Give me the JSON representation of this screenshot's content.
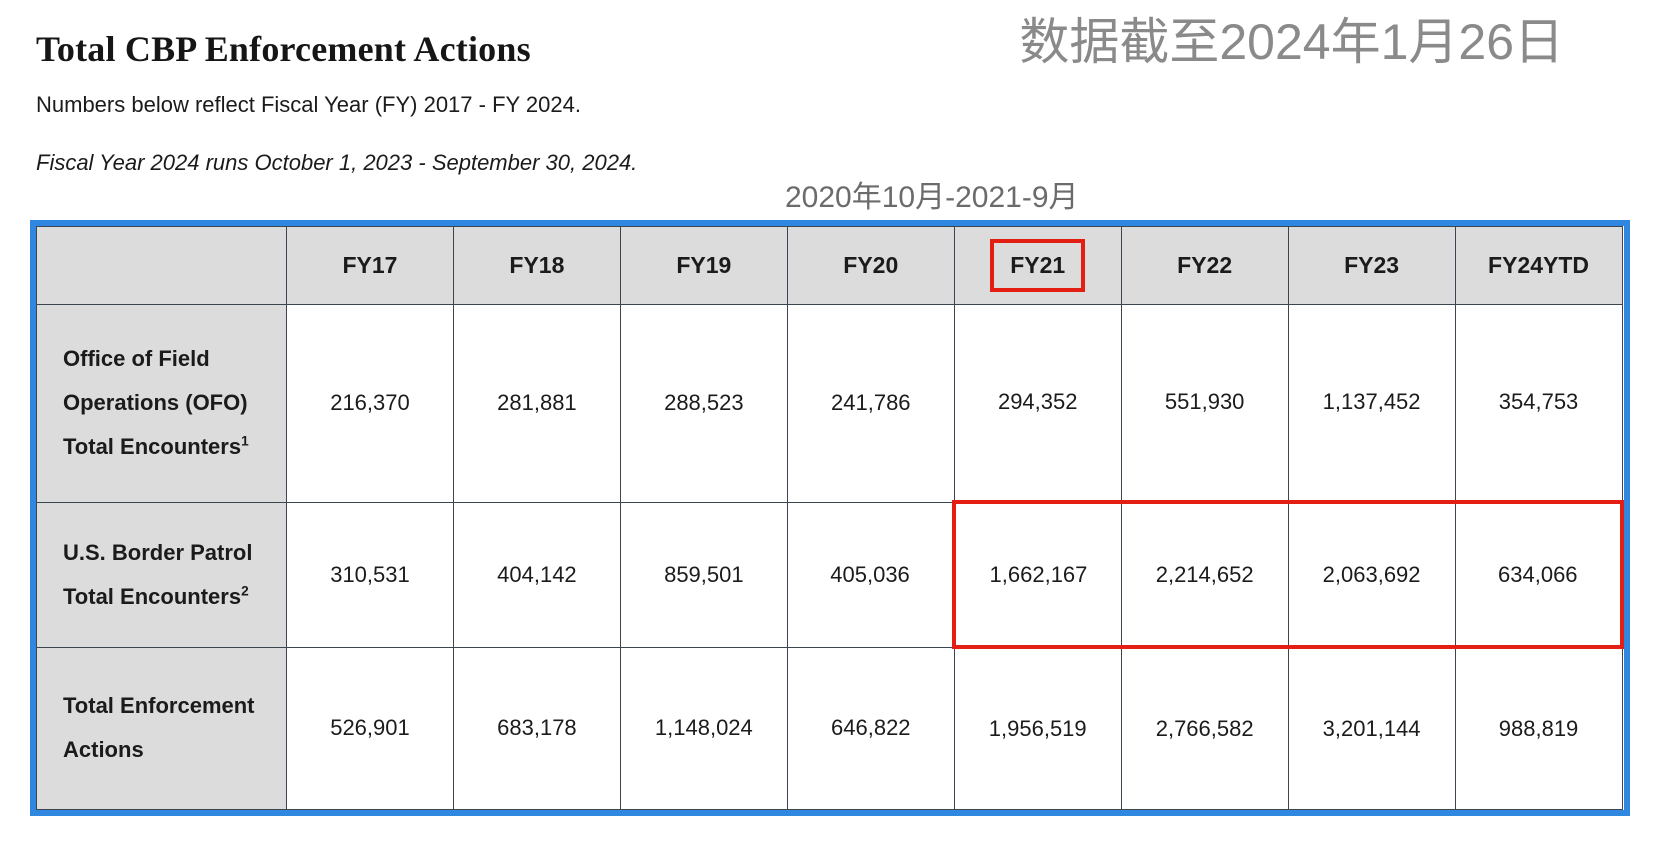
{
  "page": {
    "title": "Total CBP Enforcement Actions",
    "date_note": "数据截至2024年1月26日",
    "subtitle": "Numbers below reflect Fiscal Year (FY) 2017 - FY 2024.",
    "fiscal_note": "Fiscal Year 2024 runs October 1, 2023 - September 30, 2024.",
    "range_annotation": "2020年10月-2021-9月"
  },
  "colors": {
    "table_border_blue": "#2f87e0",
    "highlight_red": "#e31f13",
    "header_gray": "#dcdcdc"
  },
  "table": {
    "columns": [
      "",
      "FY17",
      "FY18",
      "FY19",
      "FY20",
      "FY21",
      "FY22",
      "FY23",
      "FY24YTD"
    ],
    "rows": [
      {
        "label": "Office of Field Operations (OFO) Total Encounters",
        "sup": "1",
        "values": [
          "216,370",
          "281,881",
          "288,523",
          "241,786",
          "294,352",
          "551,930",
          "1,137,452",
          "354,753"
        ]
      },
      {
        "label": "U.S. Border Patrol Total Encounters",
        "sup": "2",
        "values": [
          "310,531",
          "404,142",
          "859,501",
          "405,036",
          "1,662,167",
          "2,214,652",
          "2,063,692",
          "634,066"
        ]
      },
      {
        "label": "Total Enforcement Actions",
        "sup": "",
        "values": [
          "526,901",
          "683,178",
          "1,148,024",
          "646,822",
          "1,956,519",
          "2,766,582",
          "3,201,144",
          "988,819"
        ]
      }
    ]
  },
  "chart_data": {
    "type": "table",
    "title": "Total CBP Enforcement Actions",
    "categories": [
      "FY17",
      "FY18",
      "FY19",
      "FY20",
      "FY21",
      "FY22",
      "FY23",
      "FY24YTD"
    ],
    "series": [
      {
        "name": "Office of Field Operations (OFO) Total Encounters",
        "values": [
          216370,
          281881,
          288523,
          241786,
          294352,
          551930,
          1137452,
          354753
        ]
      },
      {
        "name": "U.S. Border Patrol Total Encounters",
        "values": [
          310531,
          404142,
          859501,
          405036,
          1662167,
          2214652,
          2063692,
          634066
        ]
      },
      {
        "name": "Total Enforcement Actions",
        "values": [
          526901,
          683178,
          1148024,
          646822,
          1956519,
          2766582,
          3201144,
          988819
        ]
      }
    ]
  }
}
